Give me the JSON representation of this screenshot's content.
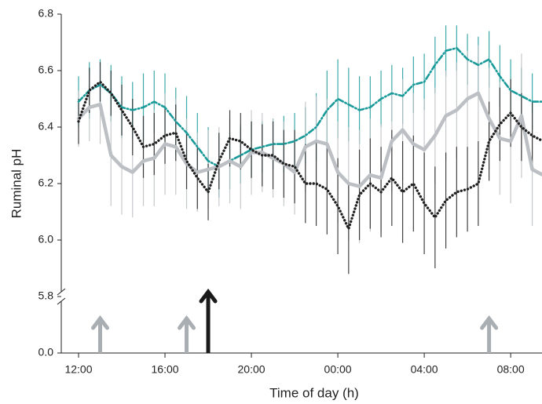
{
  "chart_data": {
    "type": "line",
    "xlabel": "Time of day (h)",
    "ylabel": "Ruminal pH",
    "x": [
      12,
      12.5,
      13,
      13.5,
      14,
      14.5,
      15,
      15.5,
      16,
      16.5,
      17,
      17.5,
      18,
      18.5,
      19,
      19.5,
      20,
      20.5,
      21,
      21.5,
      22,
      22.5,
      23,
      23.5,
      24,
      24.5,
      25,
      25.5,
      26,
      26.5,
      27,
      27.5,
      28,
      28.5,
      29,
      29.5,
      30,
      30.5,
      31,
      31.5,
      32,
      32.5,
      33,
      33.5
    ],
    "xlim": [
      11.2,
      33.45
    ],
    "xticks": [
      {
        "value": 12,
        "label": "12:00"
      },
      {
        "value": 16,
        "label": "16:00"
      },
      {
        "value": 20,
        "label": "20:00"
      },
      {
        "value": 24,
        "label": "00:00"
      },
      {
        "value": 28,
        "label": "04:00"
      },
      {
        "value": 32,
        "label": "08:00"
      }
    ],
    "ylim": [
      0,
      6.8
    ],
    "ybreak": [
      0,
      5.8
    ],
    "yticks": [
      6.8,
      6.6,
      6.4,
      6.2,
      {
        "value": 6.0,
        "label": "6.0"
      },
      5.8,
      {
        "value": 0,
        "label": "0.0"
      }
    ],
    "series": [
      {
        "color": "#1b9a9a",
        "style": "dashdot",
        "values": [
          6.49,
          6.53,
          6.55,
          6.52,
          6.47,
          6.46,
          6.47,
          6.49,
          6.47,
          6.42,
          6.38,
          6.33,
          6.28,
          6.26,
          6.28,
          6.3,
          6.32,
          6.33,
          6.34,
          6.34,
          6.35,
          6.37,
          6.4,
          6.46,
          6.5,
          6.48,
          6.46,
          6.47,
          6.5,
          6.52,
          6.51,
          6.55,
          6.56,
          6.62,
          6.67,
          6.68,
          6.64,
          6.62,
          6.64,
          6.58,
          6.53,
          6.51,
          6.49,
          6.49
        ],
        "errors": [
          0.09,
          0.1,
          0.09,
          0.1,
          0.11,
          0.1,
          0.12,
          0.11,
          0.12,
          0.12,
          0.13,
          0.12,
          0.12,
          0.11,
          0.1,
          0.1,
          0.1,
          0.09,
          0.09,
          0.1,
          0.1,
          0.1,
          0.12,
          0.14,
          0.14,
          0.13,
          0.12,
          0.11,
          0.1,
          0.1,
          0.1,
          0.1,
          0.1,
          0.1,
          0.09,
          0.08,
          0.09,
          0.1,
          0.1,
          0.11,
          0.11,
          0.1,
          0.1,
          0.1
        ]
      },
      {
        "color": "#bcbfc3",
        "style": "solid",
        "values": [
          6.43,
          6.47,
          6.48,
          6.3,
          6.26,
          6.24,
          6.28,
          6.29,
          6.34,
          6.33,
          6.27,
          6.24,
          6.25,
          6.26,
          6.28,
          6.26,
          6.31,
          6.31,
          6.29,
          6.27,
          6.24,
          6.33,
          6.35,
          6.34,
          6.24,
          6.2,
          6.19,
          6.23,
          6.22,
          6.35,
          6.39,
          6.34,
          6.32,
          6.37,
          6.44,
          6.46,
          6.5,
          6.52,
          6.43,
          6.36,
          6.35,
          6.44,
          6.25,
          6.23
        ],
        "errors": [
          0.1,
          0.12,
          0.14,
          0.18,
          0.17,
          0.16,
          0.16,
          0.17,
          0.18,
          0.17,
          0.16,
          0.14,
          0.14,
          0.14,
          0.15,
          0.15,
          0.15,
          0.14,
          0.14,
          0.15,
          0.15,
          0.16,
          0.16,
          0.16,
          0.18,
          0.2,
          0.2,
          0.2,
          0.19,
          0.18,
          0.18,
          0.18,
          0.18,
          0.17,
          0.16,
          0.17,
          0.17,
          0.17,
          0.18,
          0.2,
          0.22,
          0.22,
          0.2,
          0.2
        ]
      },
      {
        "color": "#222222",
        "style": "dotted",
        "values": [
          6.42,
          6.53,
          6.56,
          6.52,
          6.46,
          6.4,
          6.33,
          6.34,
          6.37,
          6.38,
          6.28,
          6.22,
          6.17,
          6.28,
          6.36,
          6.35,
          6.32,
          6.3,
          6.3,
          6.27,
          6.26,
          6.2,
          6.2,
          6.18,
          6.12,
          6.04,
          6.16,
          6.2,
          6.17,
          6.22,
          6.17,
          6.2,
          6.13,
          6.08,
          6.14,
          6.17,
          6.18,
          6.2,
          6.35,
          6.41,
          6.45,
          6.4,
          6.37,
          6.35
        ],
        "errors": [
          0.08,
          0.08,
          0.07,
          0.08,
          0.09,
          0.1,
          0.11,
          0.11,
          0.1,
          0.1,
          0.1,
          0.11,
          0.1,
          0.1,
          0.1,
          0.1,
          0.1,
          0.11,
          0.12,
          0.12,
          0.13,
          0.14,
          0.15,
          0.16,
          0.17,
          0.16,
          0.16,
          0.16,
          0.16,
          0.17,
          0.18,
          0.17,
          0.18,
          0.18,
          0.17,
          0.16,
          0.15,
          0.15,
          0.14,
          0.13,
          0.12,
          0.12,
          0.12,
          0.11
        ]
      }
    ],
    "events": [
      {
        "x": 13,
        "color": "#a9aeb3"
      },
      {
        "x": 17,
        "color": "#a9aeb3"
      },
      {
        "x": 18,
        "color": "#1a1a1a"
      },
      {
        "x": 31,
        "color": "#a9aeb3"
      }
    ]
  }
}
